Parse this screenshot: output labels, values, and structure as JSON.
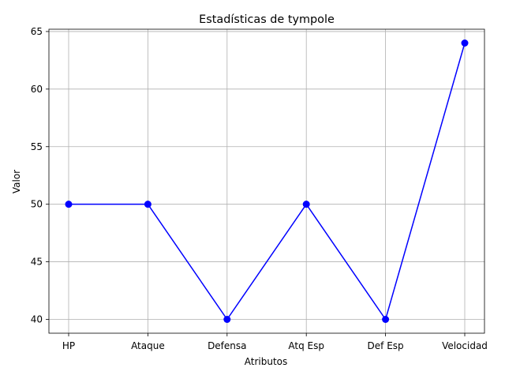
{
  "chart_data": {
    "type": "line",
    "title": "Estadísticas de tympole",
    "xlabel": "Atributos",
    "ylabel": "Valor",
    "categories": [
      "HP",
      "Ataque",
      "Defensa",
      "Atq Esp",
      "Def Esp",
      "Velocidad"
    ],
    "series": [
      {
        "name": "tympole",
        "values": [
          50,
          50,
          40,
          50,
          40,
          64
        ],
        "color": "#0000ff",
        "marker": "circle"
      }
    ],
    "ylim": [
      38.8,
      65.2
    ],
    "yticks": [
      40,
      45,
      50,
      55,
      60,
      65
    ],
    "ytick_labels": [
      "40",
      "45",
      "50",
      "55",
      "60",
      "65"
    ],
    "grid": true,
    "grid_color": "#b0b0b0",
    "axis_color": "#000000"
  }
}
